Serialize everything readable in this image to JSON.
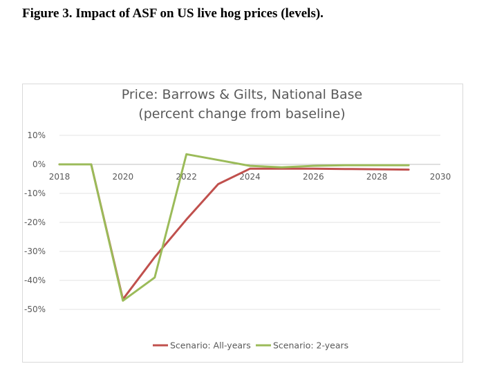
{
  "figure": {
    "caption": "Figure 3. Impact of ASF on US live hog prices (levels)."
  },
  "chart_data": {
    "type": "line",
    "title": "Price: Barrows & Gilts, National Base",
    "subtitle": "(percent change from baseline)",
    "xlabel": "",
    "ylabel": "",
    "xlim": [
      2018,
      2030
    ],
    "ylim": [
      -50,
      10
    ],
    "x_ticks": [
      "2018",
      "2020",
      "2022",
      "2024",
      "2026",
      "2028",
      "2030"
    ],
    "y_ticks": [
      "10%",
      "0%",
      "-10%",
      "-20%",
      "-30%",
      "-40%",
      "-50%"
    ],
    "grid": true,
    "legend_position": "bottom",
    "series": [
      {
        "name": "Scenario: All-years",
        "color": "#c0504d",
        "x": [
          2018,
          2019,
          2020,
          2021,
          2022,
          2023,
          2024,
          2025,
          2026,
          2027,
          2028,
          2029
        ],
        "values": [
          0,
          0,
          -46.5,
          -32,
          -19,
          -6.8,
          -1.5,
          -1.5,
          -1.5,
          -1.6,
          -1.7,
          -1.8
        ]
      },
      {
        "name": "Scenario: 2-years",
        "color": "#9bbb59",
        "x": [
          2018,
          2019,
          2020,
          2021,
          2022,
          2023,
          2024,
          2025,
          2026,
          2027,
          2028,
          2029
        ],
        "values": [
          0,
          0,
          -47,
          -39,
          3.5,
          1.5,
          -0.5,
          -1,
          -0.5,
          -0.3,
          -0.3,
          -0.3
        ]
      }
    ]
  }
}
